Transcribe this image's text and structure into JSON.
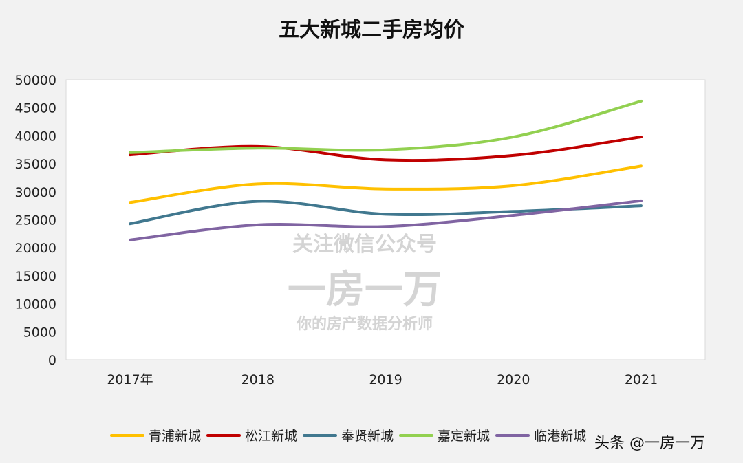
{
  "chart_data": {
    "type": "line",
    "title": "五大新城二手房均价",
    "categories": [
      "2017年",
      "2018",
      "2019",
      "2020",
      "2021"
    ],
    "ylim": [
      0,
      50000
    ],
    "yticks": [
      0,
      5000,
      10000,
      15000,
      20000,
      25000,
      30000,
      35000,
      40000,
      45000,
      50000
    ],
    "grid": false,
    "legend": "bottom",
    "smooth": true,
    "series": [
      {
        "name": "青浦新城",
        "color": "#ffc000",
        "values": [
          28100,
          31400,
          30500,
          31100,
          34600
        ]
      },
      {
        "name": "松江新城",
        "color": "#c00000",
        "values": [
          36600,
          38100,
          35700,
          36500,
          39800
        ]
      },
      {
        "name": "奉贤新城",
        "color": "#41788f",
        "values": [
          24300,
          28300,
          26000,
          26500,
          27500
        ]
      },
      {
        "name": "嘉定新城",
        "color": "#92d050",
        "values": [
          37000,
          37800,
          37500,
          39800,
          46200
        ]
      },
      {
        "name": "临港新城",
        "color": "#8064a2",
        "values": [
          21400,
          24100,
          23800,
          25800,
          28400
        ]
      }
    ]
  },
  "watermark": {
    "line1": "关注微信公众号",
    "line2": "一房一万",
    "line3": "你的房产数据分析师"
  },
  "credit": "头条 @一房一万"
}
